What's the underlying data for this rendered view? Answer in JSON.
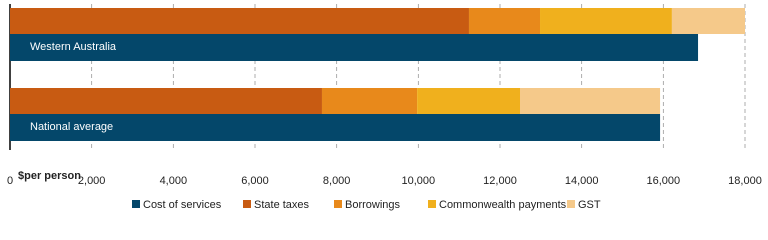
{
  "chart_data": {
    "type": "bar",
    "orientation": "horizontal",
    "categories": [
      "Western Australia",
      "National average"
    ],
    "series": [
      {
        "name": "Cost of services",
        "color": "#04476a",
        "stacked": false,
        "values": [
          16850,
          15920
        ]
      },
      {
        "name": "State taxes",
        "color": "#c85b12",
        "stacked": true,
        "values": [
          11240,
          7640
        ]
      },
      {
        "name": "Borrowings",
        "color": "#e8891b",
        "stacked": true,
        "values": [
          1740,
          2330
        ]
      },
      {
        "name": "Commonwealth payments",
        "color": "#f0b01d",
        "stacked": true,
        "values": [
          3230,
          2520
        ]
      },
      {
        "name": "GST",
        "color": "#f5c98a",
        "stacked": true,
        "values": [
          1790,
          3430
        ]
      }
    ],
    "xlabel": "$per person",
    "xlim": [
      0,
      18000
    ],
    "xticks": [
      0,
      {
        "value": 2000,
        "label": "2,000"
      },
      {
        "value": 4000,
        "label": "4,000"
      },
      {
        "value": 6000,
        "label": "6,000"
      },
      {
        "value": 8000,
        "label": "8,000"
      },
      {
        "value": 10000,
        "label": "10,000"
      },
      {
        "value": 12000,
        "label": "12,000"
      },
      {
        "value": 14000,
        "label": "14,000"
      },
      {
        "value": 16000,
        "label": "16,000"
      },
      {
        "value": 18000,
        "label": "18,000"
      }
    ],
    "grid": true,
    "legend": "bottom"
  }
}
